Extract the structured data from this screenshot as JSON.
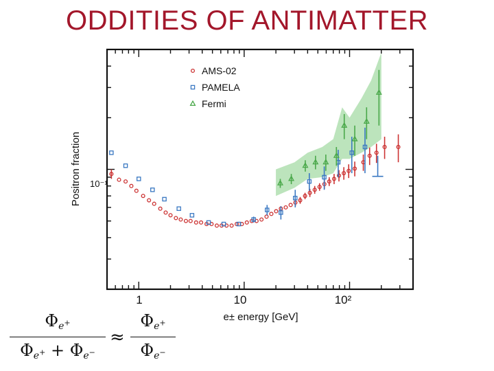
{
  "slide": {
    "title": "ODDITIES OF ANTIMATTER"
  },
  "formula": {
    "phi": "Φ",
    "sub_e": "e",
    "plus_sup": "+",
    "minus_sup": "−",
    "plus_op": "+",
    "approx": "≈"
  },
  "chart_data": {
    "type": "scatter",
    "xscale": "log",
    "yscale": "log",
    "xlim": [
      0.5,
      400
    ],
    "ylim": [
      0.02,
      0.5
    ],
    "xlabel": "e± energy [GeV]",
    "ylabel": "Positron fraction",
    "ytick_label": "10⁻¹",
    "xticks": [
      {
        "value": 1,
        "label": "1"
      },
      {
        "value": 10,
        "label": "10"
      },
      {
        "value": 100,
        "label": "10²"
      }
    ],
    "legend": {
      "placement": "top-left",
      "entries": [
        "AMS-02",
        "PAMELA",
        "Fermi"
      ]
    },
    "colors": {
      "ams": "#cc3333",
      "pamela": "#3a78c2",
      "fermi": "#4aa84a",
      "band": "#a6dba6",
      "title": "#a3172b",
      "frame": "#111111"
    },
    "series": [
      {
        "name": "AMS-02",
        "marker": "circle",
        "points": [
          {
            "x": 0.55,
            "y": 0.094,
            "err": 0.006
          },
          {
            "x": 0.65,
            "y": 0.087
          },
          {
            "x": 0.75,
            "y": 0.085
          },
          {
            "x": 0.85,
            "y": 0.08
          },
          {
            "x": 0.95,
            "y": 0.075
          },
          {
            "x": 1.1,
            "y": 0.07
          },
          {
            "x": 1.25,
            "y": 0.066
          },
          {
            "x": 1.4,
            "y": 0.063
          },
          {
            "x": 1.6,
            "y": 0.059
          },
          {
            "x": 1.8,
            "y": 0.056
          },
          {
            "x": 2.0,
            "y": 0.054
          },
          {
            "x": 2.25,
            "y": 0.052
          },
          {
            "x": 2.5,
            "y": 0.051
          },
          {
            "x": 2.8,
            "y": 0.05
          },
          {
            "x": 3.1,
            "y": 0.05
          },
          {
            "x": 3.5,
            "y": 0.049
          },
          {
            "x": 3.9,
            "y": 0.049
          },
          {
            "x": 4.4,
            "y": 0.048
          },
          {
            "x": 4.9,
            "y": 0.048
          },
          {
            "x": 5.5,
            "y": 0.047
          },
          {
            "x": 6.1,
            "y": 0.047
          },
          {
            "x": 6.8,
            "y": 0.047
          },
          {
            "x": 7.6,
            "y": 0.047
          },
          {
            "x": 8.5,
            "y": 0.048
          },
          {
            "x": 9.5,
            "y": 0.048
          },
          {
            "x": 10.6,
            "y": 0.049
          },
          {
            "x": 11.8,
            "y": 0.05
          },
          {
            "x": 13.1,
            "y": 0.05
          },
          {
            "x": 14.6,
            "y": 0.051
          },
          {
            "x": 16.3,
            "y": 0.053
          },
          {
            "x": 18.1,
            "y": 0.055
          },
          {
            "x": 20.1,
            "y": 0.057
          },
          {
            "x": 22.3,
            "y": 0.059
          },
          {
            "x": 24.8,
            "y": 0.06
          },
          {
            "x": 27.6,
            "y": 0.062
          },
          {
            "x": 30.6,
            "y": 0.064,
            "err": 0.003
          },
          {
            "x": 34.0,
            "y": 0.066,
            "err": 0.003
          },
          {
            "x": 37.8,
            "y": 0.07,
            "err": 0.003
          },
          {
            "x": 42.0,
            "y": 0.073,
            "err": 0.004
          },
          {
            "x": 46.7,
            "y": 0.076,
            "err": 0.004
          },
          {
            "x": 51.9,
            "y": 0.079,
            "err": 0.004
          },
          {
            "x": 57.7,
            "y": 0.082,
            "err": 0.005
          },
          {
            "x": 64.1,
            "y": 0.085,
            "err": 0.005
          },
          {
            "x": 71.3,
            "y": 0.088,
            "err": 0.006
          },
          {
            "x": 79.3,
            "y": 0.092,
            "err": 0.007
          },
          {
            "x": 88.2,
            "y": 0.095,
            "err": 0.008
          },
          {
            "x": 98.1,
            "y": 0.098,
            "err": 0.009
          },
          {
            "x": 112,
            "y": 0.101,
            "err": 0.01
          },
          {
            "x": 135,
            "y": 0.11,
            "err": 0.012
          },
          {
            "x": 155,
            "y": 0.12,
            "err": 0.014
          },
          {
            "x": 180,
            "y": 0.125,
            "err": 0.016
          },
          {
            "x": 215,
            "y": 0.135,
            "err": 0.02
          },
          {
            "x": 290,
            "y": 0.135,
            "err": 0.025
          }
        ]
      },
      {
        "name": "PAMELA",
        "marker": "square",
        "points": [
          {
            "x": 0.55,
            "y": 0.125
          },
          {
            "x": 0.75,
            "y": 0.105
          },
          {
            "x": 1.0,
            "y": 0.088
          },
          {
            "x": 1.35,
            "y": 0.076
          },
          {
            "x": 1.75,
            "y": 0.067
          },
          {
            "x": 2.4,
            "y": 0.059
          },
          {
            "x": 3.2,
            "y": 0.054
          },
          {
            "x": 4.6,
            "y": 0.049
          },
          {
            "x": 6.4,
            "y": 0.048
          },
          {
            "x": 8.9,
            "y": 0.048
          },
          {
            "x": 12.3,
            "y": 0.051,
            "err": 0.002
          },
          {
            "x": 16.5,
            "y": 0.058,
            "err": 0.004
          },
          {
            "x": 22.3,
            "y": 0.056,
            "err": 0.005
          },
          {
            "x": 30.5,
            "y": 0.068,
            "err": 0.008
          },
          {
            "x": 41.5,
            "y": 0.085,
            "err": 0.01
          },
          {
            "x": 57.5,
            "y": 0.09,
            "err": 0.014
          },
          {
            "x": 78,
            "y": 0.11,
            "err": 0.02
          },
          {
            "x": 105,
            "y": 0.125,
            "err": 0.03
          },
          {
            "x": 140,
            "y": 0.135,
            "err": 0.04
          }
        ]
      },
      {
        "name": "Fermi",
        "marker": "triangle",
        "points": [
          {
            "x": 22.0,
            "y": 0.083,
            "err": 0.005
          },
          {
            "x": 28.0,
            "y": 0.088,
            "err": 0.006
          },
          {
            "x": 38.0,
            "y": 0.105,
            "err": 0.008
          },
          {
            "x": 47.5,
            "y": 0.11,
            "err": 0.01
          },
          {
            "x": 59.5,
            "y": 0.11,
            "err": 0.012
          },
          {
            "x": 75.0,
            "y": 0.12,
            "err": 0.015
          },
          {
            "x": 89.0,
            "y": 0.18,
            "err": 0.03
          },
          {
            "x": 112,
            "y": 0.15,
            "err": 0.03
          },
          {
            "x": 145,
            "y": 0.19,
            "err": 0.04
          },
          {
            "x": 190,
            "y": 0.28,
            "err": 0.1
          }
        ]
      }
    ],
    "fermi_band": {
      "x": [
        20,
        30,
        40,
        55,
        70,
        85,
        100,
        130,
        160,
        200
      ],
      "low": [
        0.07,
        0.078,
        0.088,
        0.09,
        0.095,
        0.115,
        0.115,
        0.125,
        0.135,
        0.15
      ],
      "high": [
        0.1,
        0.11,
        0.125,
        0.135,
        0.15,
        0.23,
        0.2,
        0.26,
        0.33,
        0.48
      ]
    },
    "ams_limit": {
      "x": 185,
      "y": 0.095,
      "err_low": 0.004,
      "err_high": 0.025
    }
  }
}
